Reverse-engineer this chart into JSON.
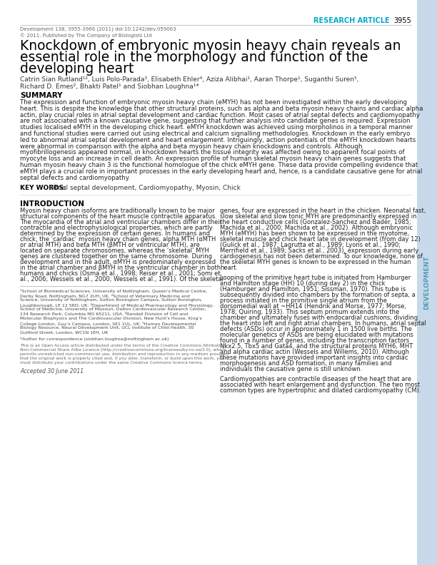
{
  "page_bg": "#ffffff",
  "sidebar_color": "#c8daea",
  "research_article_color": "#00aacc",
  "research_article_text": "RESEARCH ARTICLE",
  "page_number": "3955",
  "journal_info": "Development 138, 3955-3966 (2011) doi:10.1242/dev.059063",
  "publisher_info": "© 2011. Published by The Company of Biologists Ltd",
  "title_line1": "Knockdown of embryonic myosin heavy chain reveals an",
  "title_line2": "essential role in the morphology and function of the",
  "title_line3": "developing heart",
  "authors_line1": "Catrin Sian Rutland¹², Luis Polo-Parada³, Elisabeth Ehler⁴, Aziza Alibhai¹, Aaran Thorpe¹, Suganthi Suren⁵,",
  "authors_line2": "Richard D. Emes², Bhakti Patel¹ and Siobhan Loughna¹*",
  "summary_heading": "SUMMARY",
  "summary_text": "The expression and function of embryonic myosin heavy chain (eMYH) has not been investigated within the early developing\nheart. This is despite the knowledge that other structural proteins, such as alpha and beta myosin heavy chains and cardiac alpha\nactin, play crucial roles in atrial septal development and cardiac function. Most cases of atrial septal defects and cardiomyopathy\nare not associated with a known causative gene, suggesting that further analysis into candidate genes is required. Expression\nstudies localised eMYH in the developing chick heart. eMYH knockdown was achieved using morpholinos in a temporal manner\nand functional studies were carried out using electrical and calcium signalling methodologies. Knockdown in the early embryo\nled to abnormal atrial septal development and heart enlargement. Intriguingly, action potentials of the eMYH knockdown hearts\nwere abnormal in comparison with the alpha and beta myosin heavy chain knockdowns and controls. Although\nmyofibrillogenesis appeared normal, in knockdown hearts the tissue integrity was affected owing to apparent focal points of\nmyocyte loss and an increase in cell death. An expression profile of human skeletal myosin heavy chain genes suggests that\nhuman myosin heavy chain 3 is the functional homologue of the chick eMYH gene. These data provide compelling evidence that\neMYH plays a crucial role in important processes in the early developing heart and, hence, is a candidate causative gene for atrial\nseptal defects and cardiomyopathy.",
  "keywords_label": "KEY WORDS:",
  "keywords_text": "Atrial septal development, Cardiomyopathy, Myosin, Chick",
  "intro_heading": "INTRODUCTION",
  "intro_col1": "Myosin heavy chain isoforms are traditionally known to be major\nstructural components of the heart muscle contractile apparatus.\nThe myocardia of the atrial and ventricular chambers differ in their\ncontractile and electrophysiological properties, which are partly\ndetermined by the expression of certain genes. In humans and\nchick, the ‘cardiac’ myosin heavy chain genes, alpha MTH (αMTH\nor atrial MTH) and beta MTH (βMTH or ventricular MTH), are\nlocated on separate chromosomes, whereas the ‘skeletal’ MYH\ngenes are clustered together on the same chromosome. During\ndevelopment and in the adult, αMYH is predominately expressed\nin the atrial chamber and βMYH in the ventricular chamber in both\nhumans and chicks (Osma et al., 1998; Reiser et al., 2001; Somi et\nal., 2006; Wessels et al., 2000; Wessels et al., 1991). Of the skeletal",
  "intro_col2_p1": "genes, four are expressed in the heart in the chicken. Neonatal fast,\nslow skeletal and slow tonic MYH are predominantly expressed in\nthe heart conductive cells (Gonzalez-Sanchez and Bader, 1985;\nMachida et al., 2000; Machida et al., 2002). Although embryonic\nMYH (eMYH) has been shown to be expressed in the myotome,\nskeletal muscle and chick heart late in development (from day 12)\n(Gulick et al., 1987; Lagrutta et al., 1989; Lyons et al., 1990;\nMerrifield et al., 1989; Sacks et al., 2003), expression during early\ncardiogenesis has not been determined. To our knowledge, none of\nthe skeletal MYH genes is known to be expressed in the human\nheart.",
  "intro_col2_p2": "Looping of the primitive heart tube is initiated from Hamburger\nand Hamilton stage (HH) 10 (during day 2) in the chick\n(Hamburger and Hamilton, 1951; Sissman, 1970). This tube is\nsubsequently divided into chambers by the formation of septa, a\nprocess initiated in the primitive single atrium from the\ndorsomedial wall at ~HH14 (Hendrik and Morse, 1977; Morse,\n1978; Quiring, 1933). This septum primum extends into the\nchamber and ultimately fuses with endocardial cushions, dividing\nthe heart into left and right atrial chambers. In humans, atrial septal\ndefects (ASDs) occur in approximately 1 in 1500 live births. The\nmolecular genetics of ASDs are being elucidated with mutations\nfound in a number of genes, including the transcription factors\nNkx2.5, Tbx5 and Gata4, and the structural proteins MYH6, MHT\nand alpha cardiac actin (Wessels and Willems, 2010). Although\nthese mutations have provided important insights into cardiac\nmorphogenesis and ASD formation, in many families and\nindividuals the causative gene is still unknown.",
  "intro_col2_p3": "Cardiomyopathies are contractile diseases of the heart that are\nassociated with heart enlargement and dysfunction. The two most\ncommon types are hypertrophic and dilated cardiomyopathy (CM).",
  "footnote_col1": "¹School of Biomedical Sciences, University of Nottingham, Queen’s Medical Centre,\nDerby Road, Nottingham, NG7 2UH, UK. ²School of Veterinary Medicine and\nScience, University of Nottingham, Sutton Bonington Campus, Sutton Bonington,\nLoughborough, LE 12 5RD, UK. ³Department of Medical Pharmacology and Physiology,\nSchool of Medicine, University of Missouri, Dalton Cardiovascular Research Center,\n134 Research Park, Columbia MO 65211, USA. ⁴Randall Division of Cell and\nMolecular Biophysics and The Cardiovascular Division, New Hunt’s House, King’s\nCollege London, Guy’s Campus, London, SE1 1UL, UK. ⁵Human Developmental\nBiology Resource, Neural Development Unit, UCL Institute of Child Health, 30\nGuilford Street, London, WC1N 1EH, UK",
  "correspondence_text": "*Author for correspondence (siobhan.loughna@nottingham.ac.uk)",
  "open_access_text": "This is an Open Access article distributed under the terms of the Creative Commons Attribution\nNon-Commercial Share Alike Licence (http://creativecommons.org/licenses/by-nc-sa/3.0), which\npermits unrestricted non-commercial use, distribution and reproduction in any medium provided\nthat the original work is properly cited and, if you alter, transform, or build upon this work, you\nmust distribute your contributions under the same Creative Commons licence terms.",
  "accepted_text": "Accepted 30 June 2011",
  "development_sidebar_text": "DEVELOPMENT"
}
